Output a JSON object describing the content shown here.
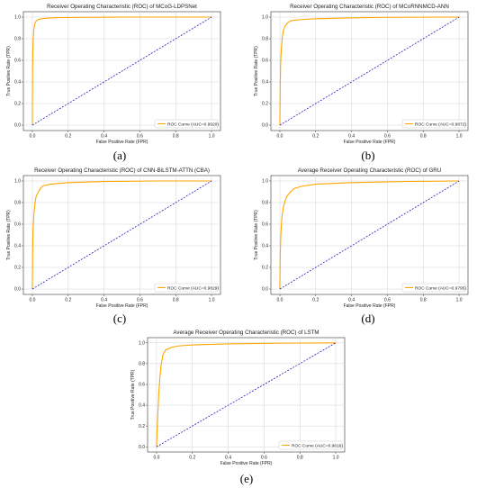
{
  "figure": {
    "colors": {
      "roc": "#ffa500",
      "diagonal": "#1f1fbf",
      "grid": "#d3d3d3",
      "axis": "#333333"
    }
  },
  "chart_data": [
    {
      "type": "line",
      "panel_label": "(a)",
      "title": "Receiver Operating Characteristic (ROC) of MCoG-LDPSNet",
      "xlabel": "False Positive Rate (FPR)",
      "ylabel": "True Positive Rate (TPR)",
      "xlim": [
        -0.05,
        1.05
      ],
      "ylim": [
        -0.05,
        1.05
      ],
      "xticks": [
        "0.0",
        "0.2",
        "0.4",
        "0.6",
        "0.8",
        "1.0"
      ],
      "yticks": [
        "0.0",
        "0.2",
        "0.4",
        "0.6",
        "0.8",
        "1.0"
      ],
      "grid": true,
      "legend_position": "lower-right",
      "series": [
        {
          "name": "ROC Curve (AUC=0.9920)",
          "style": "solid",
          "x": [
            0,
            0.001,
            0.002,
            0.003,
            0.005,
            0.008,
            0.012,
            0.02,
            0.03,
            0.05,
            0.08,
            0.15,
            0.3,
            0.5,
            1.0
          ],
          "y": [
            0,
            0.45,
            0.62,
            0.7,
            0.8,
            0.88,
            0.93,
            0.96,
            0.975,
            0.985,
            0.99,
            0.995,
            0.998,
            1.0,
            1.0
          ]
        },
        {
          "style": "dashed",
          "x": [
            0,
            1
          ],
          "y": [
            0,
            1
          ]
        }
      ]
    },
    {
      "type": "line",
      "panel_label": "(b)",
      "title": "Receiver Operating Characteristic (ROC) of MCoRNNMCD-ANN",
      "xlabel": "False Positive Rate (FPR)",
      "ylabel": "True Positive Rate (TPR)",
      "xlim": [
        -0.05,
        1.05
      ],
      "ylim": [
        -0.05,
        1.05
      ],
      "xticks": [
        "0.0",
        "0.2",
        "0.4",
        "0.6",
        "0.8",
        "1.0"
      ],
      "yticks": [
        "0.0",
        "0.2",
        "0.4",
        "0.6",
        "0.8",
        "1.0"
      ],
      "grid": true,
      "legend_position": "lower-right",
      "series": [
        {
          "name": "ROC Curve (AUC=0.9872)",
          "style": "solid",
          "x": [
            0,
            0.002,
            0.004,
            0.006,
            0.01,
            0.015,
            0.02,
            0.03,
            0.045,
            0.06,
            0.1,
            0.2,
            0.4,
            0.6,
            1.0
          ],
          "y": [
            0,
            0.35,
            0.55,
            0.64,
            0.75,
            0.83,
            0.88,
            0.92,
            0.95,
            0.965,
            0.975,
            0.985,
            0.993,
            0.998,
            1.0
          ]
        },
        {
          "style": "dashed",
          "x": [
            0,
            1
          ],
          "y": [
            0,
            1
          ]
        }
      ]
    },
    {
      "type": "line",
      "panel_label": "(c)",
      "title": "Receiver Operating Characteristic (ROC) of CNN-BiLSTM-ATTN (CBA)",
      "xlabel": "False Positive Rate (FPR)",
      "ylabel": "True Positive Rate (TPR)",
      "xlim": [
        -0.05,
        1.05
      ],
      "ylim": [
        -0.05,
        1.05
      ],
      "xticks": [
        "0.0",
        "0.2",
        "0.4",
        "0.6",
        "0.8",
        "1.0"
      ],
      "yticks": [
        "0.0",
        "0.2",
        "0.4",
        "0.6",
        "0.8",
        "1.0"
      ],
      "grid": true,
      "legend_position": "lower-right",
      "series": [
        {
          "name": "ROC Curve (AUC=0.9829)",
          "style": "solid",
          "x": [
            0,
            0.002,
            0.004,
            0.007,
            0.01,
            0.015,
            0.02,
            0.03,
            0.045,
            0.06,
            0.1,
            0.2,
            0.4,
            0.7,
            1.0
          ],
          "y": [
            0,
            0.4,
            0.55,
            0.65,
            0.72,
            0.8,
            0.85,
            0.89,
            0.93,
            0.955,
            0.97,
            0.985,
            0.995,
            1.0,
            1.0
          ]
        },
        {
          "style": "dashed",
          "x": [
            0,
            1
          ],
          "y": [
            0,
            1
          ]
        }
      ]
    },
    {
      "type": "line",
      "panel_label": "(d)",
      "title": "Average Receiver Operating Characteristic (ROC) of GRU",
      "xlabel": "False Positive Rate (FPR)",
      "ylabel": "True Positive Rate (TPR)",
      "xlim": [
        -0.05,
        1.05
      ],
      "ylim": [
        -0.05,
        1.05
      ],
      "xticks": [
        "0.0",
        "0.2",
        "0.4",
        "0.6",
        "0.8",
        "1.0"
      ],
      "yticks": [
        "0.0",
        "0.2",
        "0.4",
        "0.6",
        "0.8",
        "1.0"
      ],
      "grid": true,
      "legend_position": "lower-right",
      "series": [
        {
          "name": "ROC Curve (AUC=0.9795)",
          "style": "solid",
          "x": [
            0,
            0.002,
            0.005,
            0.008,
            0.012,
            0.02,
            0.03,
            0.04,
            0.06,
            0.08,
            0.12,
            0.2,
            0.4,
            0.7,
            1.0
          ],
          "y": [
            0,
            0.3,
            0.48,
            0.58,
            0.67,
            0.76,
            0.82,
            0.86,
            0.9,
            0.93,
            0.95,
            0.97,
            0.985,
            0.995,
            1.0
          ]
        },
        {
          "style": "dashed",
          "x": [
            0,
            1
          ],
          "y": [
            0,
            1
          ]
        }
      ]
    },
    {
      "type": "line",
      "panel_label": "(e)",
      "title": "Average Receiver Operating Characteristic (ROC) of LSTM",
      "xlabel": "False Positive Rate (FPR)",
      "ylabel": "True Positive Rate (TPR)",
      "xlim": [
        -0.05,
        1.05
      ],
      "ylim": [
        -0.05,
        1.05
      ],
      "xticks": [
        "0.0",
        "0.2",
        "0.4",
        "0.6",
        "0.8",
        "1.0"
      ],
      "yticks": [
        "0.0",
        "0.2",
        "0.4",
        "0.6",
        "0.8",
        "1.0"
      ],
      "grid": true,
      "legend_position": "lower-right",
      "series": [
        {
          "name": "ROC Curve (AUC=0.9616)",
          "style": "solid",
          "x": [
            0,
            0.002,
            0.005,
            0.008,
            0.012,
            0.018,
            0.025,
            0.035,
            0.05,
            0.08,
            0.12,
            0.2,
            0.4,
            0.7,
            1.0
          ],
          "y": [
            0,
            0.12,
            0.22,
            0.35,
            0.5,
            0.65,
            0.78,
            0.88,
            0.93,
            0.955,
            0.97,
            0.98,
            0.99,
            0.997,
            1.0
          ]
        },
        {
          "style": "dashed",
          "x": [
            0,
            1
          ],
          "y": [
            0,
            1
          ]
        }
      ]
    }
  ]
}
